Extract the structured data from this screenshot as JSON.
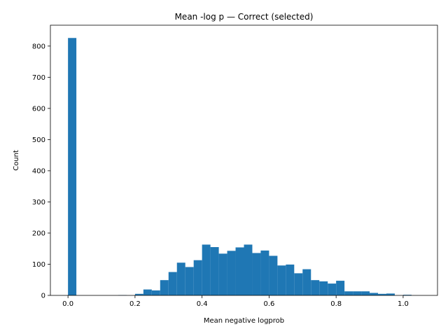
{
  "chart_data": {
    "type": "bar",
    "title": "Mean -log p — Correct (selected)",
    "xlabel": "Mean negative logprob",
    "ylabel": "Count",
    "xlim": [
      -0.0525,
      1.1025
    ],
    "ylim": [
      0,
      867
    ],
    "x_ticks": [
      0.0,
      0.2,
      0.4,
      0.6,
      0.8,
      1.0
    ],
    "x_tick_labels": [
      "0.0",
      "0.2",
      "0.4",
      "0.6",
      "0.8",
      "1.0"
    ],
    "y_ticks": [
      0,
      100,
      200,
      300,
      400,
      500,
      600,
      700,
      800
    ],
    "y_tick_labels": [
      "0",
      "100",
      "200",
      "300",
      "400",
      "500",
      "600",
      "700",
      "800"
    ],
    "bin_edges_start": 0.0,
    "bin_width": 0.025,
    "values": [
      826,
      0,
      0,
      0,
      0,
      0,
      1,
      0,
      5,
      19,
      16,
      49,
      75,
      105,
      91,
      113,
      163,
      155,
      134,
      143,
      154,
      163,
      136,
      144,
      127,
      96,
      99,
      71,
      84,
      49,
      45,
      38,
      47,
      13,
      13,
      13,
      8,
      5,
      6,
      0,
      2
    ],
    "bar_color": "#1f77b4",
    "grid": false,
    "legend": "none"
  }
}
